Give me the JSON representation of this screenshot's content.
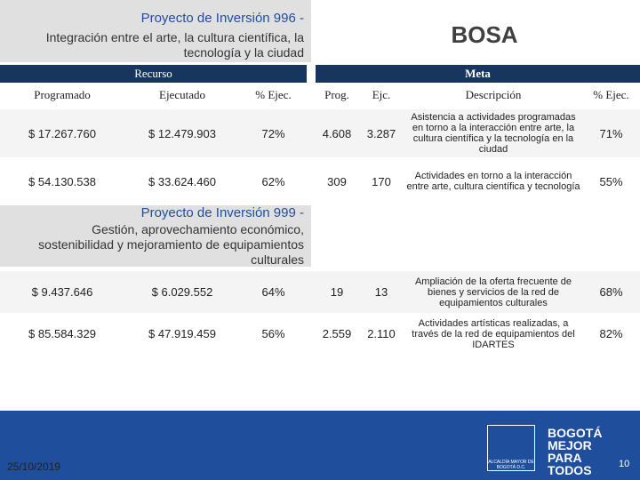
{
  "header": {
    "recurso": "Recurso",
    "meta": "Meta",
    "locality": "BOSA",
    "columns": [
      "Programado",
      "Ejecutado",
      "% Ejec.",
      "Prog.",
      "Ejc.",
      "Descripción",
      "% Ejec."
    ]
  },
  "project_1": {
    "title": "Proyecto de Inversión  996 -",
    "subtitle": "Integración entre el arte, la cultura científica, la tecnología y la ciudad",
    "rows": [
      [
        "$ 17.267.760",
        "$ 12.479.903",
        "72%",
        "4.608",
        "3.287",
        "Asistencia a actividades programadas en torno a la interacción entre arte,  la cultura científica y la tecnología en la ciudad",
        "71%"
      ],
      [
        "$ 54.130.538",
        "$ 33.624.460",
        "62%",
        "309",
        "170",
        "Actividades en torno a la interacción entre arte,  cultura científica y tecnología",
        "55%"
      ]
    ]
  },
  "project_2": {
    "title": "Proyecto de Inversión  999 -",
    "subtitle": "Gestión, aprovechamiento económico, sostenibilidad y mejoramiento de equipamientos culturales",
    "rows": [
      [
        "$ 9.437.646",
        "$ 6.029.552",
        "64%",
        "19",
        "13",
        "Ampliación de la oferta frecuente de bienes y servicios de la red de equipamientos culturales",
        "68%"
      ],
      [
        "$ 85.584.329",
        "$ 47.919.459",
        "56%",
        "2.559",
        "2.110",
        "Actividades artísticas realizadas, a través de la red de equipamientos del IDARTES",
        "82%"
      ]
    ]
  },
  "footer": {
    "date": "25/10/2019",
    "page": "10",
    "logo": "BOGOTÁ MEJOR PARA TODOS",
    "entity": "ALCALDÍA MAYOR DE BOGOTÁ D.C."
  }
}
